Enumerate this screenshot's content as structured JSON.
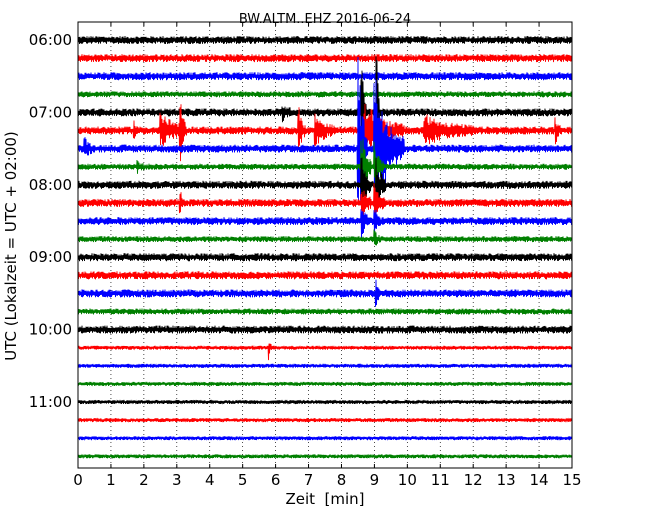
{
  "chart_data": {
    "type": "line",
    "title": "BW.ALTM..EHZ 2016-06-24",
    "xlabel": "Zeit  [min]",
    "ylabel": "UTC (Lokalzeit = UTC + 02:00)",
    "xlim": [
      0,
      15
    ],
    "x_ticks": [
      0,
      1,
      2,
      3,
      4,
      5,
      6,
      7,
      8,
      9,
      10,
      11,
      12,
      13,
      14,
      15
    ],
    "y_ticks": [
      {
        "label": "06:00",
        "trace_index": 0
      },
      {
        "label": "07:00",
        "trace_index": 4
      },
      {
        "label": "08:00",
        "trace_index": 8
      },
      {
        "label": "09:00",
        "trace_index": 12
      },
      {
        "label": "10:00",
        "trace_index": 16
      },
      {
        "label": "11:00",
        "trace_index": 20
      }
    ],
    "grid": "vertical dotted",
    "series": [
      {
        "start": "06:00",
        "color": "#000000",
        "noise": 4,
        "events": []
      },
      {
        "start": "06:15",
        "color": "#ff0000",
        "noise": 4,
        "events": []
      },
      {
        "start": "06:30",
        "color": "#0000ff",
        "noise": 4,
        "events": []
      },
      {
        "start": "06:45",
        "color": "#008000",
        "noise": 3,
        "events": []
      },
      {
        "start": "07:00",
        "color": "#000000",
        "noise": 4,
        "events": [
          {
            "x": 6.2,
            "amp": 7,
            "dur": 0.3
          },
          {
            "x": 8.6,
            "amp": 80,
            "dur": 0.15
          },
          {
            "x": 9.05,
            "amp": 85,
            "dur": 0.12
          }
        ]
      },
      {
        "start": "07:15",
        "color": "#ff0000",
        "noise": 4,
        "events": [
          {
            "x": 1.7,
            "amp": 8,
            "dur": 0.1
          },
          {
            "x": 2.5,
            "amp": 16,
            "dur": 0.8
          },
          {
            "x": 3.1,
            "amp": 32,
            "dur": 0.15
          },
          {
            "x": 6.7,
            "amp": 22,
            "dur": 0.2
          },
          {
            "x": 7.2,
            "amp": 14,
            "dur": 0.6
          },
          {
            "x": 8.7,
            "amp": 26,
            "dur": 1.2
          },
          {
            "x": 10.5,
            "amp": 14,
            "dur": 1.5
          },
          {
            "x": 14.5,
            "amp": 12,
            "dur": 0.15
          }
        ]
      },
      {
        "start": "07:30",
        "color": "#0000ff",
        "noise": 4,
        "events": [
          {
            "x": 0.2,
            "amp": 9,
            "dur": 0.25
          },
          {
            "x": 8.5,
            "amp": 105,
            "dur": 0.3
          },
          {
            "x": 9.0,
            "amp": 78,
            "dur": 0.9
          }
        ]
      },
      {
        "start": "07:45",
        "color": "#008000",
        "noise": 3,
        "events": [
          {
            "x": 1.8,
            "amp": 5,
            "dur": 0.2
          },
          {
            "x": 8.6,
            "amp": 40,
            "dur": 0.3
          },
          {
            "x": 9.0,
            "amp": 26,
            "dur": 0.3
          }
        ]
      },
      {
        "start": "08:00",
        "color": "#000000",
        "noise": 4,
        "events": [
          {
            "x": 8.6,
            "amp": 30,
            "dur": 0.3
          },
          {
            "x": 9.05,
            "amp": 26,
            "dur": 0.3
          }
        ]
      },
      {
        "start": "08:15",
        "color": "#ff0000",
        "noise": 4,
        "events": [
          {
            "x": 3.1,
            "amp": 14,
            "dur": 0.1
          },
          {
            "x": 8.6,
            "amp": 18,
            "dur": 0.3
          },
          {
            "x": 9.0,
            "amp": 16,
            "dur": 0.3
          }
        ]
      },
      {
        "start": "08:30",
        "color": "#0000ff",
        "noise": 4,
        "events": [
          {
            "x": 8.6,
            "amp": 18,
            "dur": 0.2
          },
          {
            "x": 9.0,
            "amp": 14,
            "dur": 0.2
          }
        ]
      },
      {
        "start": "08:45",
        "color": "#008000",
        "noise": 3,
        "events": [
          {
            "x": 9.0,
            "amp": 7,
            "dur": 0.2
          }
        ]
      },
      {
        "start": "09:00",
        "color": "#000000",
        "noise": 4,
        "events": []
      },
      {
        "start": "09:15",
        "color": "#ff0000",
        "noise": 4,
        "events": []
      },
      {
        "start": "09:30",
        "color": "#0000ff",
        "noise": 4,
        "events": [
          {
            "x": 9.05,
            "amp": 16,
            "dur": 0.1
          }
        ]
      },
      {
        "start": "09:45",
        "color": "#008000",
        "noise": 3,
        "events": []
      },
      {
        "start": "10:00",
        "color": "#000000",
        "noise": 4,
        "events": []
      },
      {
        "start": "10:15",
        "color": "#ff0000",
        "noise": 2,
        "events": [
          {
            "x": 5.8,
            "amp": 8,
            "dur": 0.1
          }
        ]
      },
      {
        "start": "10:30",
        "color": "#0000ff",
        "noise": 2,
        "events": []
      },
      {
        "start": "10:45",
        "color": "#008000",
        "noise": 2,
        "events": []
      },
      {
        "start": "11:00",
        "color": "#000000",
        "noise": 2,
        "events": []
      },
      {
        "start": "11:15",
        "color": "#ff0000",
        "noise": 2,
        "events": []
      },
      {
        "start": "11:30",
        "color": "#0000ff",
        "noise": 2,
        "events": []
      },
      {
        "start": "11:45",
        "color": "#008000",
        "noise": 2,
        "events": []
      }
    ]
  }
}
